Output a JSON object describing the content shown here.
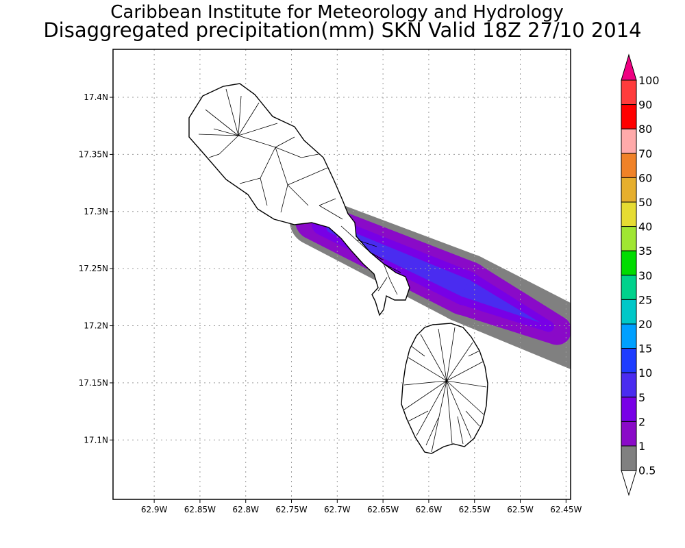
{
  "header": {
    "institute": "Caribbean Institute for Meteorology and Hydrology",
    "product": "Disaggregated precipitation(mm) SKN Valid 18Z 27/10 2014"
  },
  "map": {
    "lon_range": [
      -62.945,
      -62.445
    ],
    "lat_range": [
      17.048,
      17.442
    ],
    "lon_ticks": [
      {
        "value": -62.9,
        "label": "62.9W"
      },
      {
        "value": -62.85,
        "label": "62.85W"
      },
      {
        "value": -62.8,
        "label": "62.8W"
      },
      {
        "value": -62.75,
        "label": "62.75W"
      },
      {
        "value": -62.7,
        "label": "62.7W"
      },
      {
        "value": -62.65,
        "label": "62.65W"
      },
      {
        "value": -62.6,
        "label": "62.6W"
      },
      {
        "value": -62.55,
        "label": "62.55W"
      },
      {
        "value": -62.5,
        "label": "62.5W"
      },
      {
        "value": -62.45,
        "label": "62.45W"
      }
    ],
    "lat_ticks": [
      {
        "value": 17.1,
        "label": "17.1N"
      },
      {
        "value": 17.15,
        "label": "17.15N"
      },
      {
        "value": 17.2,
        "label": "17.2N"
      },
      {
        "value": 17.25,
        "label": "17.25N"
      },
      {
        "value": 17.3,
        "label": "17.3N"
      },
      {
        "value": 17.35,
        "label": "17.35N"
      },
      {
        "value": 17.4,
        "label": "17.4N"
      }
    ],
    "grid": true,
    "precip_band": {
      "axis": [
        [
          -62.725,
          17.292
        ],
        [
          -62.56,
          17.233
        ],
        [
          -62.46,
          17.196
        ]
      ],
      "contours": [
        {
          "level": "0.5",
          "color": "#808080",
          "widths": [
            0.027,
            0.038,
            0.032
          ],
          "extend": 0.04
        },
        {
          "level": "1",
          "color": "#8a0ac8",
          "widths": [
            0.021,
            0.03,
            0.016
          ],
          "extend": 0.0
        },
        {
          "level": "2",
          "color": "#7800e6",
          "widths": [
            0.012,
            0.019,
            0.006
          ],
          "extend": -0.01
        },
        {
          "level": "5",
          "color": "#4a2cf0",
          "widths": [
            0.005,
            0.01,
            0.0
          ],
          "extend": -0.02
        }
      ]
    }
  },
  "colorbar": {
    "levels": [
      {
        "label": "100",
        "color": "#f00082"
      },
      {
        "label": "90",
        "color": "#ff3c3c"
      },
      {
        "label": "80",
        "color": "#ff0000"
      },
      {
        "label": "70",
        "color": "#ffaaaa"
      },
      {
        "label": "60",
        "color": "#f08228"
      },
      {
        "label": "50",
        "color": "#e6af2d"
      },
      {
        "label": "40",
        "color": "#e6dc32"
      },
      {
        "label": "35",
        "color": "#a0e632"
      },
      {
        "label": "30",
        "color": "#00dc00"
      },
      {
        "label": "25",
        "color": "#00d28c"
      },
      {
        "label": "20",
        "color": "#00c8c8"
      },
      {
        "label": "15",
        "color": "#00a0ff"
      },
      {
        "label": "10",
        "color": "#1e3cff"
      },
      {
        "label": "5",
        "color": "#4a2cf0"
      },
      {
        "label": "2",
        "color": "#7800e6"
      },
      {
        "label": "1",
        "color": "#8a0ac8"
      },
      {
        "label": "0.5",
        "color": "#808080"
      }
    ]
  }
}
